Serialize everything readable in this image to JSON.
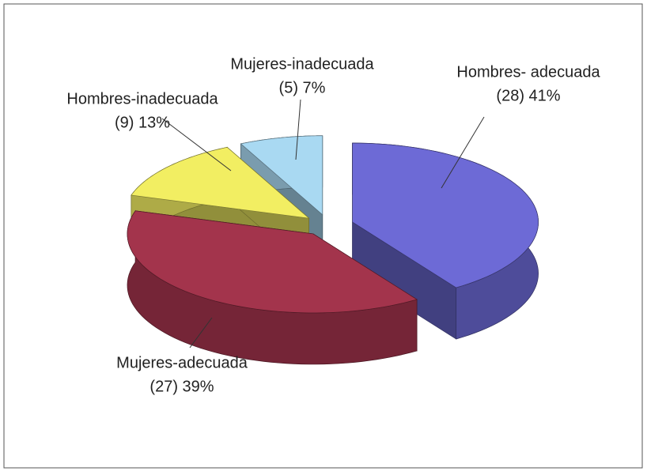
{
  "chart_data": {
    "type": "pie3d",
    "categories": [
      "Hombres- adecuada",
      "Mujeres-adecuada",
      "Hombres-inadecuada",
      "Mujeres-inadecuada"
    ],
    "values": [
      28,
      27,
      9,
      5
    ],
    "value_labels": [
      "(28) 41%",
      "(27) 39%",
      "(9) 13%",
      "(5) 7%"
    ],
    "colors": [
      "#6d6ad6",
      "#a3344c",
      "#f2ee62",
      "#a9d9f2"
    ]
  }
}
